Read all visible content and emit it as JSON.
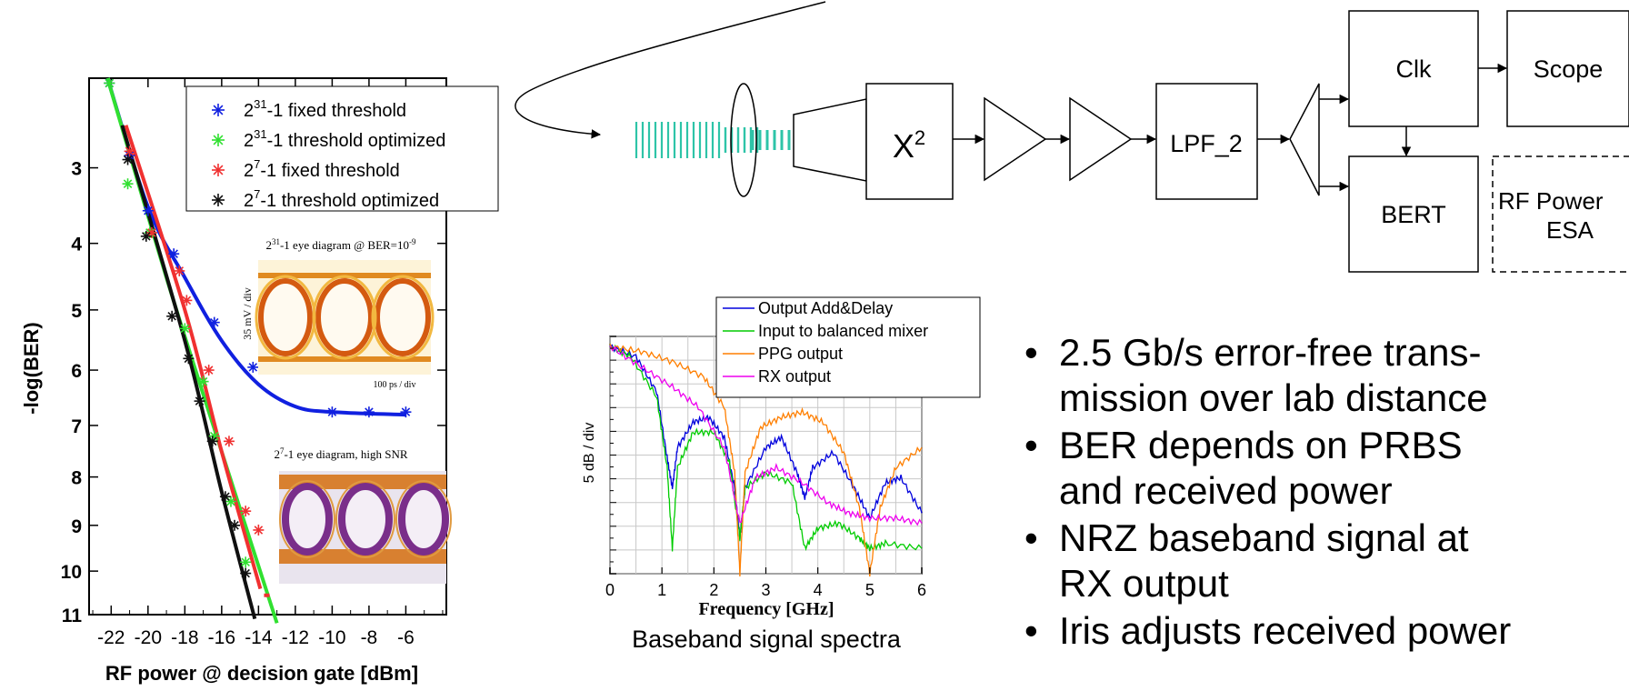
{
  "ber_chart": {
    "type": "line",
    "xlabel": "RF power @ decision gate  [dBm]",
    "ylabel": "-log(BER)",
    "x_ticks": [
      -22,
      -20,
      -18,
      -16,
      -14,
      -12,
      -10,
      -8,
      -6
    ],
    "x_tick_labels": [
      "-22",
      "-20",
      "-18",
      "-16",
      "-14",
      "-12",
      "-10",
      "-8",
      "-6"
    ],
    "y_ticks": [
      3,
      4,
      5,
      6,
      7,
      8,
      9,
      10,
      11
    ],
    "y_tick_labels": [
      "3",
      "4",
      "5",
      "6",
      "7",
      "8",
      "9",
      "10",
      "11"
    ],
    "xlim": [
      -23.2,
      -3.8
    ],
    "ylim": [
      2,
      11
    ],
    "y_scale": "sqrt-log",
    "legend_position": "top-right",
    "series": [
      {
        "name": "2^31-1 fixed threshold",
        "label_base": "2",
        "label_sup": "31",
        "label_rest": "-1 fixed threshold",
        "color": "#1020e0",
        "points": [
          [
            -22.1,
            2.05
          ],
          [
            -21.0,
            2.85
          ],
          [
            -20.0,
            3.55
          ],
          [
            -18.6,
            4.15
          ],
          [
            -16.4,
            5.2
          ],
          [
            -14.3,
            5.95
          ],
          [
            -10.0,
            6.75
          ],
          [
            -8.0,
            6.75
          ],
          [
            -6.0,
            6.75
          ]
        ],
        "curve": [
          [
            -22.2,
            2.0
          ],
          [
            -20.0,
            3.5
          ],
          [
            -18.0,
            4.5
          ],
          [
            -16.0,
            5.5
          ],
          [
            -14.0,
            6.25
          ],
          [
            -12.0,
            6.65
          ],
          [
            -10.0,
            6.75
          ],
          [
            -6.0,
            6.8
          ]
        ]
      },
      {
        "name": "2^31-1 threshold optimized",
        "label_base": "2",
        "label_sup": "31",
        "label_rest": "-1 threshold optimized",
        "color": "#30e030",
        "points": [
          [
            -22.1,
            2.05
          ],
          [
            -21.1,
            3.2
          ],
          [
            -19.9,
            3.85
          ],
          [
            -18.0,
            5.3
          ],
          [
            -17.0,
            6.2
          ],
          [
            -16.4,
            7.2
          ],
          [
            -15.5,
            8.5
          ],
          [
            -14.7,
            9.8
          ]
        ],
        "curve": [
          [
            -22.2,
            2.0
          ],
          [
            -19.0,
            4.5
          ],
          [
            -16.0,
            7.5
          ],
          [
            -13.0,
            11.2
          ]
        ]
      },
      {
        "name": "2^7-1 fixed threshold",
        "label_base": "2",
        "label_sup": "7",
        "label_rest": "-1  fixed threshold",
        "color": "#f03030",
        "points": [
          [
            -21.0,
            2.8
          ],
          [
            -19.8,
            3.85
          ],
          [
            -18.3,
            4.4
          ],
          [
            -17.9,
            4.85
          ],
          [
            -16.7,
            6.0
          ],
          [
            -15.6,
            7.3
          ],
          [
            -14.7,
            8.7
          ],
          [
            -14.0,
            9.1
          ]
        ],
        "curve": [
          [
            -21.2,
            2.5
          ],
          [
            -18.0,
            5.0
          ],
          [
            -16.0,
            7.5
          ],
          [
            -13.9,
            10.4
          ]
        ]
      },
      {
        "name": "2^7-1 threshold optimized",
        "label_base": "2",
        "label_sup": "7",
        "label_rest": "-1  threshold optimized",
        "color": "#101010",
        "points": [
          [
            -21.1,
            2.9
          ],
          [
            -20.1,
            3.9
          ],
          [
            -18.7,
            5.1
          ],
          [
            -17.8,
            5.8
          ],
          [
            -17.2,
            6.55
          ],
          [
            -16.5,
            7.3
          ],
          [
            -15.8,
            8.4
          ],
          [
            -15.3,
            9.0
          ],
          [
            -14.7,
            10.05
          ]
        ],
        "curve": [
          [
            -21.4,
            2.5
          ],
          [
            -18.0,
            5.5
          ],
          [
            -16.0,
            8.3
          ],
          [
            -14.2,
            11.1
          ]
        ]
      }
    ]
  },
  "insets": {
    "eye1_title_base": "2",
    "eye1_title_sup1": "31",
    "eye1_title_mid": "-1 eye diagram @ BER=10",
    "eye1_title_sup2": "-9",
    "eye1_ylabel": "35 mV / div",
    "eye1_xlabel": "100 ps / div",
    "eye2_title_base": "2",
    "eye2_title_sup": "7",
    "eye2_title_rest": "-1 eye diagram, high SNR"
  },
  "spectra_chart": {
    "type": "line",
    "title": "Baseband signal spectra",
    "xlabel": "Frequency [GHz]",
    "ylabel": "5 dB / div",
    "x_ticks": [
      0,
      1,
      2,
      3,
      4,
      5,
      6
    ],
    "x_tick_labels": [
      "0",
      "1",
      "2",
      "3",
      "4",
      "5",
      "6"
    ],
    "xlim": [
      0,
      6
    ],
    "ylim": [
      -45,
      2
    ],
    "grid": true,
    "legend_position": "top-right",
    "series": [
      {
        "name": "Output Add&Delay",
        "color": "#0000dd",
        "points": [
          [
            0,
            0
          ],
          [
            0.5,
            -2
          ],
          [
            0.9,
            -9
          ],
          [
            1.1,
            -22
          ],
          [
            1.2,
            -28
          ],
          [
            1.3,
            -20
          ],
          [
            1.6,
            -15
          ],
          [
            1.9,
            -14
          ],
          [
            2.2,
            -18
          ],
          [
            2.4,
            -28
          ],
          [
            2.5,
            -38
          ],
          [
            2.6,
            -28
          ],
          [
            3.0,
            -20
          ],
          [
            3.3,
            -18
          ],
          [
            3.6,
            -25
          ],
          [
            3.75,
            -30
          ],
          [
            3.9,
            -24
          ],
          [
            4.3,
            -21
          ],
          [
            4.7,
            -28
          ],
          [
            5.0,
            -34
          ],
          [
            5.3,
            -27
          ],
          [
            5.6,
            -26
          ],
          [
            6.0,
            -33
          ]
        ]
      },
      {
        "name": "Input to balanced mixer",
        "color": "#00cc00",
        "points": [
          [
            0,
            0
          ],
          [
            0.4,
            -2
          ],
          [
            0.9,
            -10
          ],
          [
            1.1,
            -24
          ],
          [
            1.2,
            -40
          ],
          [
            1.3,
            -24
          ],
          [
            1.6,
            -17
          ],
          [
            2.0,
            -17
          ],
          [
            2.3,
            -23
          ],
          [
            2.5,
            -38
          ],
          [
            2.6,
            -28
          ],
          [
            3.0,
            -25
          ],
          [
            3.5,
            -27
          ],
          [
            3.75,
            -40
          ],
          [
            4.0,
            -36
          ],
          [
            4.4,
            -35
          ],
          [
            4.8,
            -38
          ],
          [
            5.0,
            -40
          ],
          [
            5.3,
            -39
          ],
          [
            6.0,
            -40
          ]
        ]
      },
      {
        "name": "PPG output",
        "color": "#ff7f00",
        "points": [
          [
            0,
            0
          ],
          [
            0.6,
            -1
          ],
          [
            1.2,
            -3
          ],
          [
            1.8,
            -6
          ],
          [
            2.2,
            -12
          ],
          [
            2.4,
            -25
          ],
          [
            2.5,
            -45
          ],
          [
            2.6,
            -25
          ],
          [
            2.9,
            -16
          ],
          [
            3.3,
            -14
          ],
          [
            3.7,
            -13
          ],
          [
            4.1,
            -15
          ],
          [
            4.5,
            -21
          ],
          [
            4.8,
            -32
          ],
          [
            5.0,
            -45
          ],
          [
            5.2,
            -32
          ],
          [
            5.5,
            -24
          ],
          [
            6.0,
            -20
          ]
        ]
      },
      {
        "name": "RX output",
        "color": "#ee00ee",
        "points": [
          [
            0,
            0
          ],
          [
            0.6,
            -4
          ],
          [
            1.2,
            -8
          ],
          [
            1.7,
            -12
          ],
          [
            2.2,
            -20
          ],
          [
            2.5,
            -35
          ],
          [
            2.8,
            -26
          ],
          [
            3.2,
            -24
          ],
          [
            3.7,
            -27
          ],
          [
            4.2,
            -31
          ],
          [
            4.6,
            -33
          ],
          [
            5.0,
            -34
          ],
          [
            5.5,
            -34
          ],
          [
            6.0,
            -35
          ]
        ]
      }
    ]
  },
  "diagram": {
    "square_label": "X",
    "square_sup": "2",
    "lpf_label": "LPF_2",
    "clk_label": "Clk",
    "scope_label": "Scope",
    "bert_label": "BERT",
    "rfpower_line1": "RF Power",
    "rfpower_line2": "ESA"
  },
  "bullets": [
    "2.5 Gb/s error-free trans-mission over lab distance",
    "BER depends on PRBS and received power",
    "NRZ baseband signal at RX output",
    "Iris adjusts received power"
  ],
  "bullet_lines": [
    [
      "2.5 Gb/s error-free trans-",
      "mission over lab distance"
    ],
    [
      "BER depends on PRBS",
      "and received power"
    ],
    [
      "NRZ baseband signal at",
      "RX output"
    ],
    [
      "Iris adjusts received power"
    ]
  ],
  "bullet_symbol": "•"
}
